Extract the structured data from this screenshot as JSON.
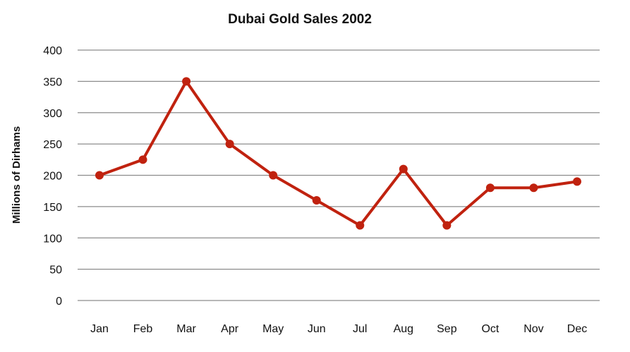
{
  "chart_data": {
    "type": "line",
    "title": "Dubai Gold Sales 2002",
    "xlabel": "",
    "ylabel": "Millions of Dirhams",
    "categories": [
      "Jan",
      "Feb",
      "Mar",
      "Apr",
      "May",
      "Jun",
      "Jul",
      "Aug",
      "Sep",
      "Oct",
      "Nov",
      "Dec"
    ],
    "series": [
      {
        "values": [
          200,
          225,
          350,
          250,
          200,
          160,
          120,
          210,
          120,
          180,
          180,
          190
        ]
      }
    ],
    "ylim": [
      0,
      400
    ],
    "yticks": [
      0,
      50,
      100,
      150,
      200,
      250,
      300,
      350,
      400
    ],
    "grid": true,
    "legend": "none",
    "colors": {
      "series": "#c0220f",
      "grid": "#8c8c8c",
      "text": "#111111"
    }
  }
}
